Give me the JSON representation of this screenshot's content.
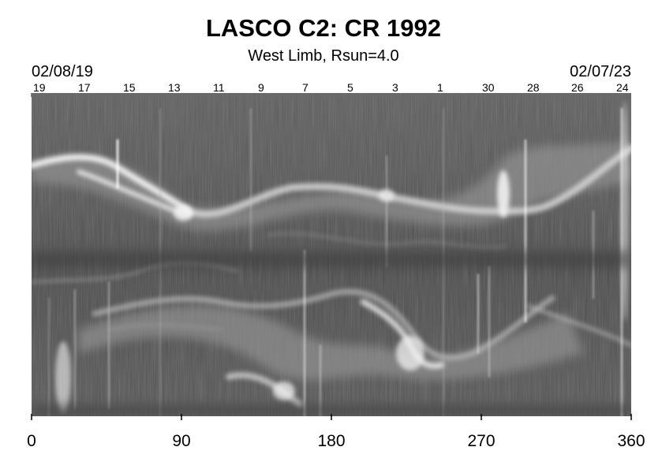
{
  "title": "LASCO C2: CR 1992",
  "subtitle": "West Limb, Rsun=4.0",
  "date_start": "02/08/19",
  "date_end": "02/07/23",
  "top_axis": {
    "day_labels": [
      "19",
      "17",
      "15",
      "13",
      "11",
      "9",
      "7",
      "5",
      "3",
      "1",
      "30",
      "28",
      "26",
      "24"
    ]
  },
  "bottom_axis": {
    "ticks": [
      "0",
      "90",
      "180",
      "270",
      "360"
    ]
  },
  "colors": {
    "background": "#ffffff",
    "plot_base": "#595959"
  }
}
